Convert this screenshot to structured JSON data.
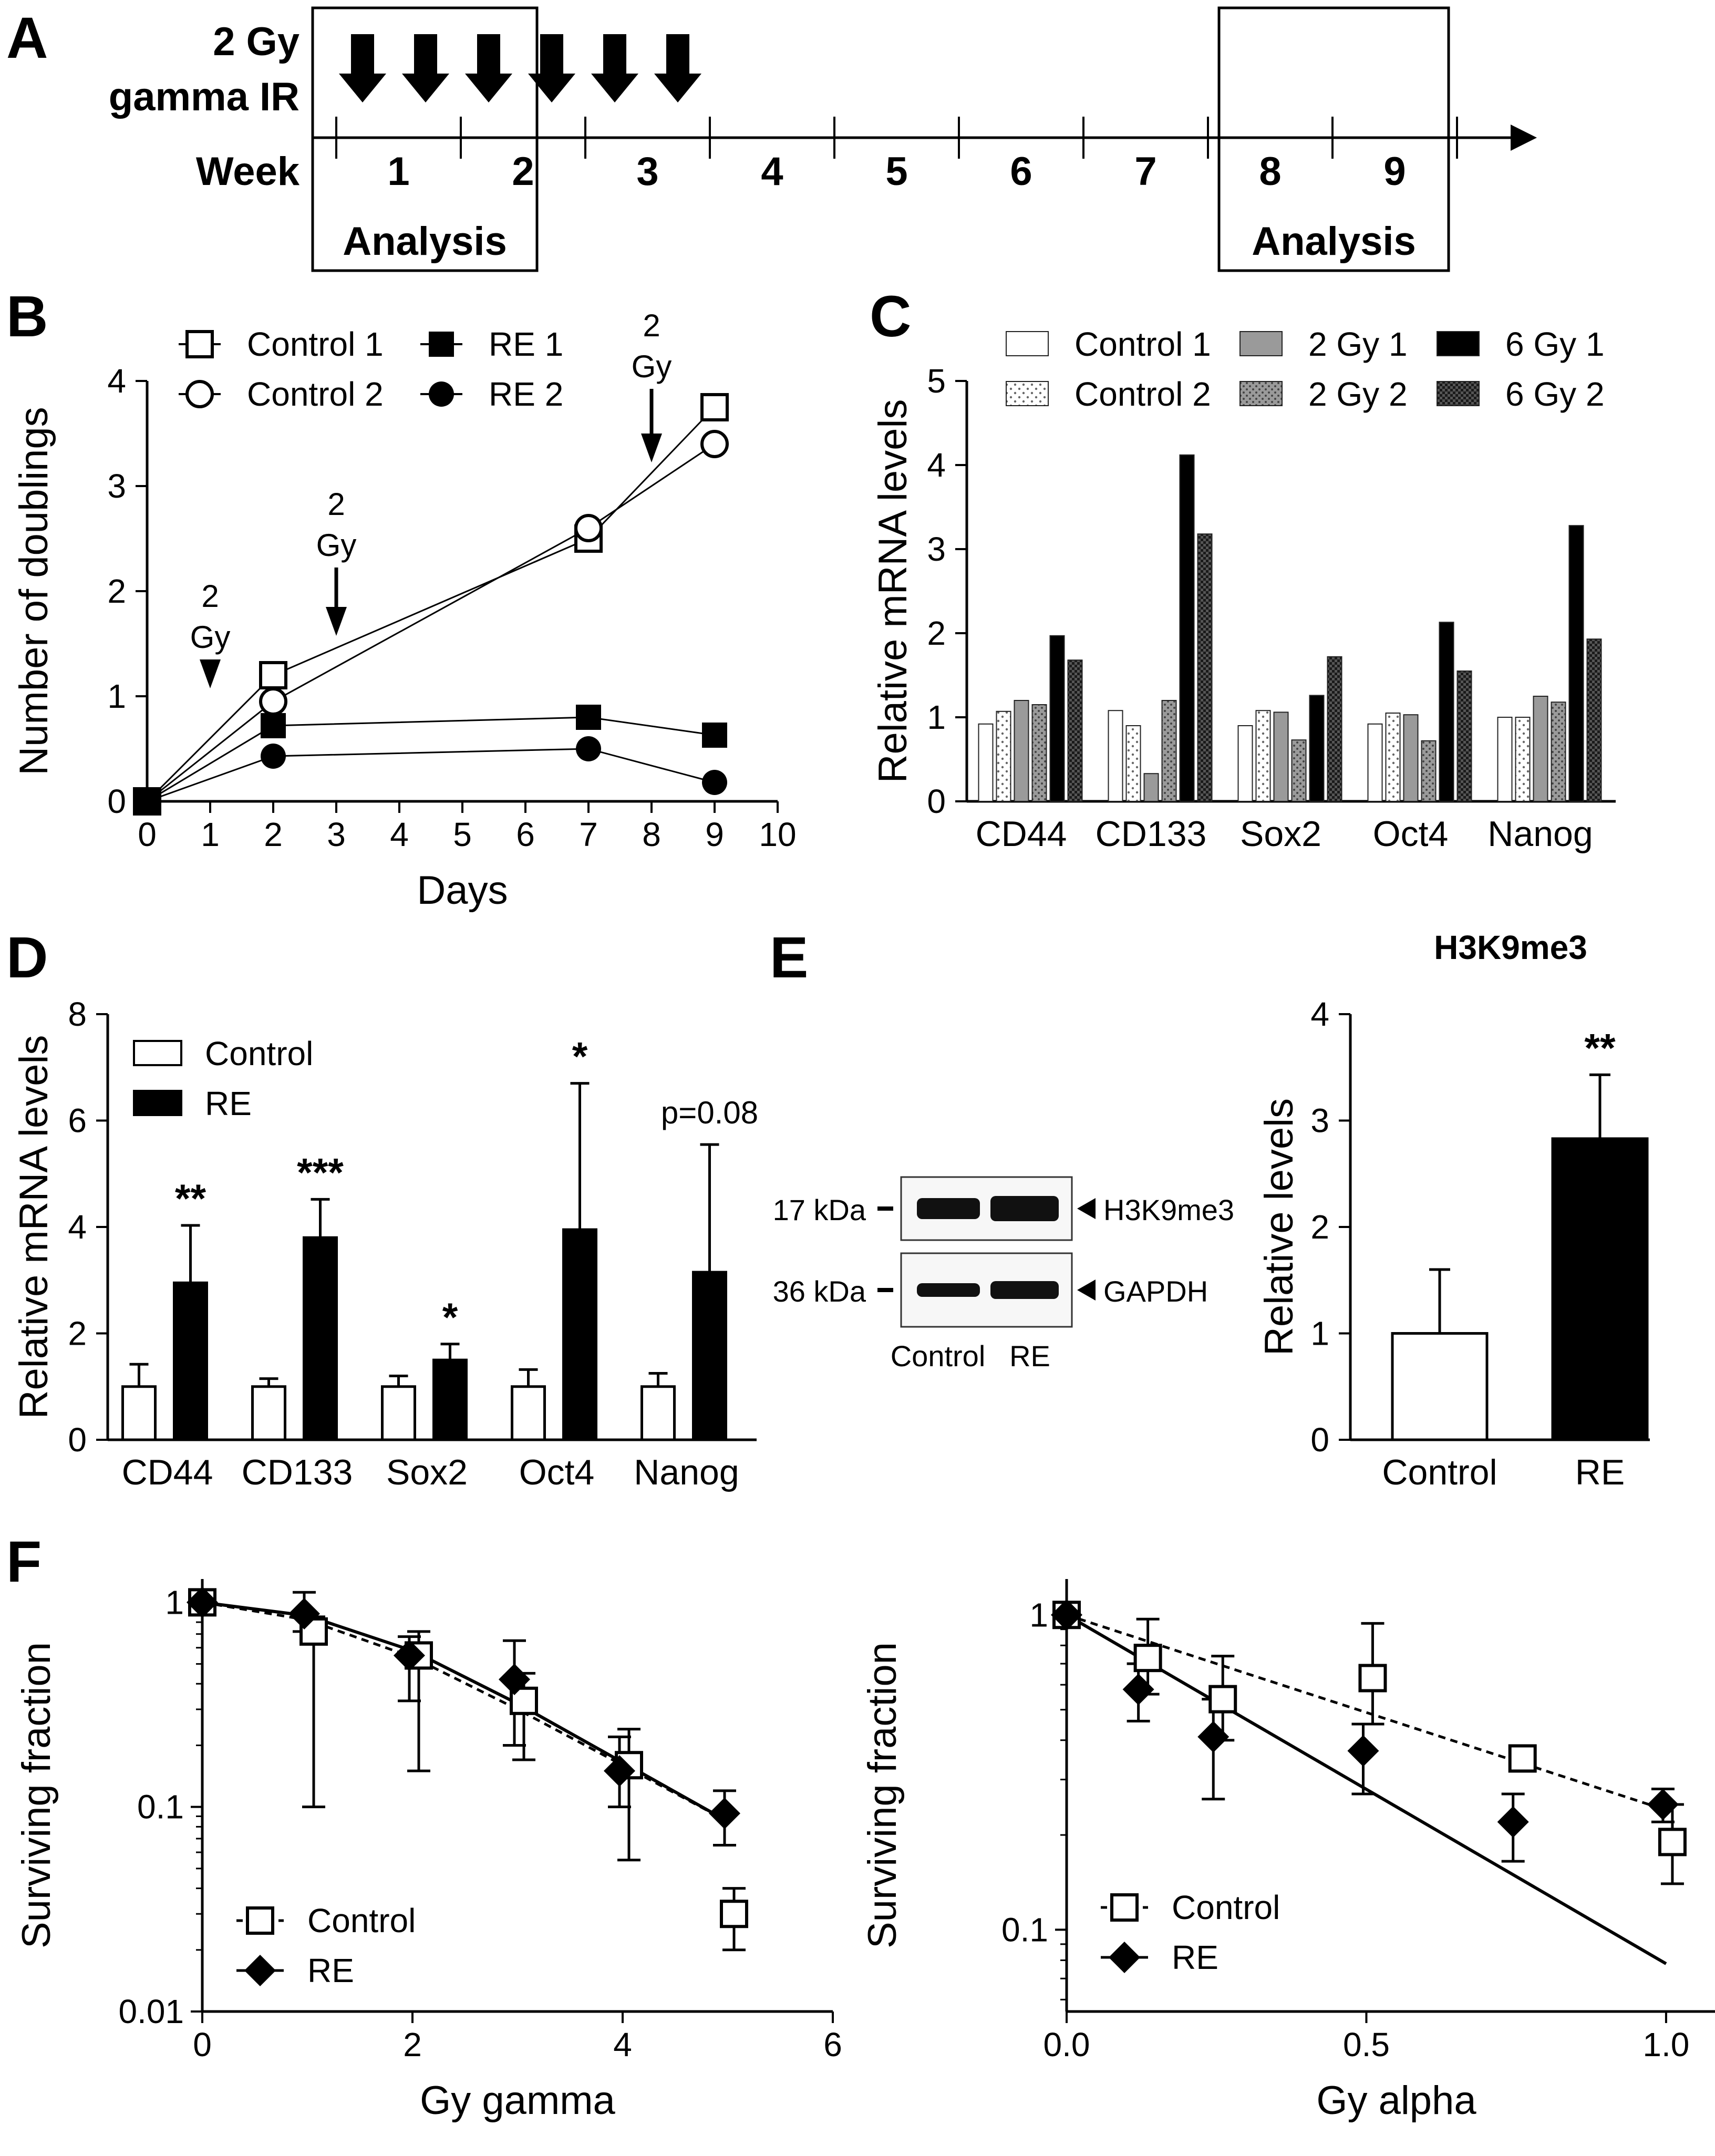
{
  "panel_labels": {
    "A": "A",
    "B": "B",
    "C": "C",
    "D": "D",
    "E": "E",
    "F": "F"
  },
  "panel_a": {
    "dose_label_1": "2 Gy",
    "dose_label_2": "gamma IR",
    "week_label": "Week",
    "weeks": [
      "1",
      "2",
      "3",
      "4",
      "5",
      "6",
      "7",
      "8",
      "9"
    ],
    "analysis_label": "Analysis",
    "analysis_windows": [
      [
        "1",
        "2"
      ],
      [
        "8",
        "9"
      ]
    ],
    "irradiation_events": 6
  },
  "chart_data": [
    {
      "id": "B",
      "type": "line",
      "xlabel": "Days",
      "ylabel": "Number of doublings",
      "xlim": [
        0,
        10
      ],
      "ylim": [
        0,
        4
      ],
      "xticks": [
        "0",
        "1",
        "2",
        "3",
        "4",
        "5",
        "6",
        "7",
        "8",
        "9",
        "10"
      ],
      "yticks": [
        "0",
        "1",
        "2",
        "3",
        "4"
      ],
      "legend_position": "top",
      "series": [
        {
          "name": "Control 1",
          "marker": "open-square",
          "x": [
            0,
            2,
            7,
            9
          ],
          "y": [
            0,
            1.2,
            2.5,
            3.75
          ]
        },
        {
          "name": "Control 2",
          "marker": "open-circle",
          "x": [
            0,
            2,
            7,
            9
          ],
          "y": [
            0,
            0.95,
            2.6,
            3.4
          ]
        },
        {
          "name": "RE 1",
          "marker": "filled-square",
          "x": [
            0,
            2,
            7,
            9
          ],
          "y": [
            0,
            0.72,
            0.8,
            0.63
          ]
        },
        {
          "name": "RE 2",
          "marker": "filled-circle",
          "x": [
            0,
            2,
            7,
            9
          ],
          "y": [
            0,
            0.43,
            0.5,
            0.18
          ]
        }
      ],
      "annotations": [
        {
          "text_1": "2",
          "text_2": "Gy",
          "x": 1
        },
        {
          "text_1": "2",
          "text_2": "Gy",
          "x": 3
        },
        {
          "text_1": "2",
          "text_2": "Gy",
          "x": 8
        }
      ]
    },
    {
      "id": "C",
      "type": "bar",
      "ylabel": "Relative mRNA levels",
      "ylim": [
        0,
        5
      ],
      "yticks": [
        "0",
        "1",
        "2",
        "3",
        "4",
        "5"
      ],
      "categories": [
        "CD44",
        "CD133",
        "Sox2",
        "Oct4",
        "Nanog"
      ],
      "legend_position": "top",
      "series": [
        {
          "name": "Control 1",
          "fill": "white",
          "values": [
            0.92,
            1.08,
            0.9,
            0.92,
            1.0
          ]
        },
        {
          "name": "Control 2",
          "fill": "dotted",
          "values": [
            1.07,
            0.9,
            1.08,
            1.05,
            1.0
          ]
        },
        {
          "name": "2 Gy 1",
          "fill": "gray",
          "values": [
            1.2,
            0.33,
            1.06,
            1.03,
            1.25
          ]
        },
        {
          "name": "2 Gy 2",
          "fill": "dotted-gray",
          "values": [
            1.15,
            1.2,
            0.73,
            0.72,
            1.18
          ]
        },
        {
          "name": "6 Gy 1",
          "fill": "black",
          "values": [
            1.97,
            4.12,
            1.26,
            2.13,
            3.28
          ]
        },
        {
          "name": "6 Gy 2",
          "fill": "checker",
          "values": [
            1.68,
            3.18,
            1.72,
            1.55,
            1.93
          ]
        }
      ]
    },
    {
      "id": "D",
      "type": "bar",
      "ylabel": "Relative mRNA levels",
      "ylim": [
        0,
        8
      ],
      "yticks": [
        "0",
        "2",
        "4",
        "6",
        "8"
      ],
      "categories": [
        "CD44",
        "CD133",
        "Sox2",
        "Oct4",
        "Nanog"
      ],
      "legend_position": "top-left",
      "series": [
        {
          "name": "Control",
          "fill": "white",
          "values": [
            1.0,
            1.0,
            1.0,
            1.0,
            1.0
          ],
          "errors": [
            0.42,
            0.15,
            0.2,
            0.32,
            0.25
          ]
        },
        {
          "name": "RE",
          "fill": "black",
          "values": [
            2.95,
            3.8,
            1.5,
            3.95,
            3.15
          ],
          "errors": [
            1.08,
            0.72,
            0.3,
            2.75,
            2.4
          ]
        }
      ],
      "significance": [
        "**",
        "***",
        "*",
        "*",
        "p=0.08"
      ]
    },
    {
      "id": "E-blot",
      "type": "blot",
      "size_markers": [
        "17 kDa",
        "36 kDa"
      ],
      "bands": [
        "H3K9me3",
        "GAPDH"
      ],
      "lanes": [
        "Control",
        "RE"
      ]
    },
    {
      "id": "E",
      "type": "bar",
      "title": "H3K9me3",
      "ylabel": "Relative levels",
      "ylim": [
        0,
        4
      ],
      "yticks": [
        "0",
        "1",
        "2",
        "3",
        "4"
      ],
      "categories": [
        "Control",
        "RE"
      ],
      "values": [
        1.0,
        2.83
      ],
      "errors": [
        0.6,
        0.6
      ],
      "significance": [
        "",
        "**"
      ]
    },
    {
      "id": "F-gamma",
      "type": "scatter",
      "xlabel": "Gy gamma",
      "ylabel": "Surviving fraction",
      "yscale": "log",
      "xlim": [
        0,
        6
      ],
      "ylim": [
        0.01,
        1.3
      ],
      "xticks": [
        "0",
        "2",
        "4",
        "6"
      ],
      "yticks": [
        "0.01",
        "0.1",
        "1"
      ],
      "legend_position": "bottom-left",
      "series": [
        {
          "name": "Control",
          "marker": "open-square",
          "line": "dashed",
          "x": [
            0,
            1,
            2,
            3,
            4,
            5
          ],
          "y": [
            1.0,
            0.72,
            0.55,
            0.33,
            0.16,
            0.03
          ],
          "err_lo": [
            0,
            0.1,
            0.15,
            0.17,
            0.055,
            0.02
          ],
          "err_hi": [
            0,
            0.85,
            0.72,
            0.45,
            0.24,
            0.04
          ]
        },
        {
          "name": "RE",
          "marker": "filled-diamond",
          "line": "solid",
          "x": [
            0,
            1,
            2,
            3,
            4,
            5
          ],
          "y": [
            1.0,
            0.88,
            0.55,
            0.42,
            0.15,
            0.093
          ],
          "err_lo": [
            0,
            0.72,
            0.33,
            0.2,
            0.1,
            0.065
          ],
          "err_hi": [
            0,
            1.12,
            0.68,
            0.65,
            0.22,
            0.12
          ]
        }
      ],
      "fit_curves": [
        {
          "series": "Control",
          "line": "dashed",
          "x": [
            0,
            1,
            2,
            3,
            4,
            5
          ],
          "y": [
            1.0,
            0.82,
            0.54,
            0.3,
            0.16,
            0.085
          ]
        },
        {
          "series": "RE",
          "line": "solid",
          "x": [
            0,
            1,
            2,
            3,
            4,
            5
          ],
          "y": [
            1.0,
            0.86,
            0.58,
            0.32,
            0.165,
            0.085
          ]
        }
      ]
    },
    {
      "id": "F-alpha",
      "type": "scatter",
      "xlabel": "Gy alpha",
      "ylabel": "Surviving fraction",
      "yscale": "log",
      "xlim": [
        0,
        1.1
      ],
      "ylim": [
        0.055,
        1.3
      ],
      "xticks": [
        "0.0",
        "0.5",
        "1.0"
      ],
      "yticks": [
        "0.1",
        "1"
      ],
      "legend_position": "bottom-left",
      "series": [
        {
          "name": "Control",
          "marker": "open-square",
          "line": "dashed",
          "x": [
            0,
            0.125,
            0.25,
            0.5,
            0.75,
            1.0
          ],
          "y": [
            1.0,
            0.73,
            0.54,
            0.63,
            0.35,
            0.19
          ],
          "err_lo": [
            0,
            0.56,
            0.4,
            0.45,
            0.32,
            0.14
          ],
          "err_hi": [
            0,
            0.97,
            0.74,
            0.94,
            0.38,
            0.25
          ]
        },
        {
          "name": "RE",
          "marker": "filled-diamond",
          "line": "solid",
          "x": [
            0,
            0.125,
            0.25,
            0.5,
            0.75,
            1.0
          ],
          "y": [
            1.0,
            0.58,
            0.41,
            0.37,
            0.22,
            0.25
          ],
          "err_lo": [
            0,
            0.46,
            0.26,
            0.27,
            0.165,
            0.22
          ],
          "err_hi": [
            0,
            0.7,
            0.54,
            0.45,
            0.27,
            0.28
          ]
        }
      ],
      "fit_curves": [
        {
          "series": "Control",
          "line": "dashed",
          "x": [
            0,
            1.0
          ],
          "y": [
            1.0,
            0.24
          ]
        },
        {
          "series": "RE",
          "line": "solid",
          "x": [
            0,
            1.0
          ],
          "y": [
            1.0,
            0.078
          ]
        }
      ]
    }
  ]
}
